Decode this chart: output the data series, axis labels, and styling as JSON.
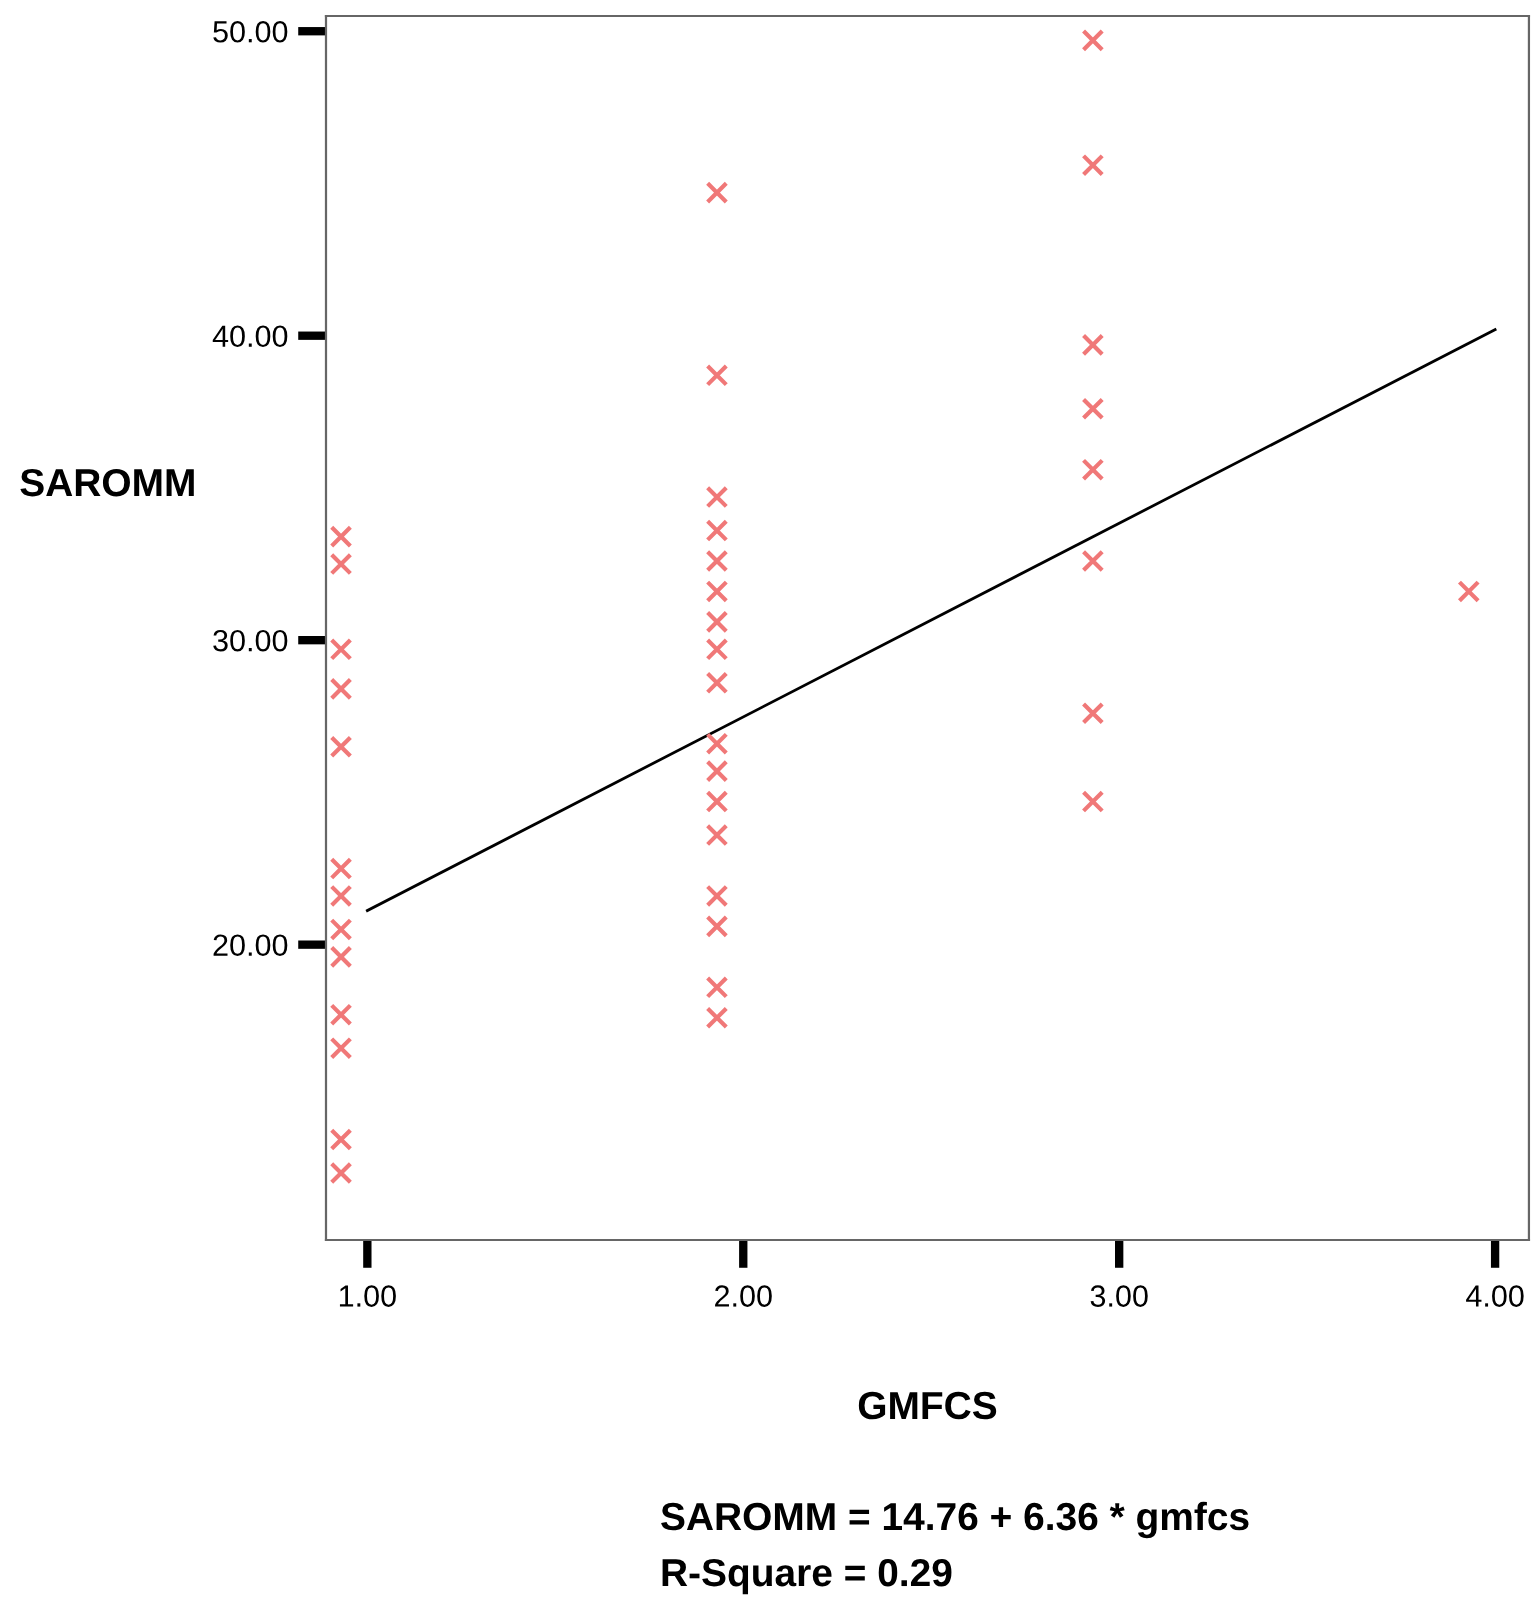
{
  "chart_data": {
    "type": "scatter",
    "xlabel": "GMFCS",
    "ylabel": "SAROMM",
    "annotations": [
      "SAROMM = 14.76 + 6.36 * gmfcs",
      "R-Square = 0.29"
    ],
    "series": [
      {
        "color": "#f07878",
        "marker": "cross",
        "x": [
          0.93,
          0.93,
          0.93,
          0.93,
          0.93,
          0.93,
          0.93,
          0.93,
          0.93,
          0.93,
          0.93,
          0.93,
          0.93,
          1.93,
          1.93,
          1.93,
          1.93,
          1.93,
          1.93,
          1.93,
          1.93,
          1.93,
          1.93,
          1.93,
          1.93,
          1.93,
          1.93,
          1.93,
          1.93,
          1.93,
          2.93,
          2.93,
          2.93,
          2.93,
          2.93,
          2.93,
          2.93,
          2.93,
          3.93
        ],
        "values": [
          33.4,
          32.5,
          29.7,
          28.4,
          26.5,
          22.5,
          21.6,
          20.5,
          19.6,
          17.7,
          16.6,
          13.6,
          12.5,
          44.7,
          38.7,
          34.7,
          33.6,
          32.6,
          31.6,
          30.6,
          29.7,
          28.6,
          26.6,
          25.7,
          24.7,
          23.6,
          21.6,
          20.6,
          18.6,
          17.6,
          49.7,
          45.6,
          39.7,
          37.6,
          35.6,
          32.6,
          27.6,
          24.7,
          31.6
        ]
      },
      {
        "type": "line",
        "color": "#000000",
        "line_style": "solid",
        "x": [
          1,
          4
        ],
        "values": [
          21.12,
          40.2
        ]
      }
    ],
    "xlim": [
      0.89,
      4.09
    ],
    "ylim": [
      10.3,
      50.5
    ],
    "xticks": [
      {
        "value": 1,
        "label": "1.00"
      },
      {
        "value": 2,
        "label": "2.00"
      },
      {
        "value": 3,
        "label": "3.00"
      },
      {
        "value": 4,
        "label": "4.00"
      }
    ],
    "yticks": [
      {
        "value": 20,
        "label": "20.00"
      },
      {
        "value": 30,
        "label": "30.00"
      },
      {
        "value": 40,
        "label": "40.00"
      },
      {
        "value": 50,
        "label": "50.00"
      }
    ],
    "grid": false,
    "legend": false
  }
}
